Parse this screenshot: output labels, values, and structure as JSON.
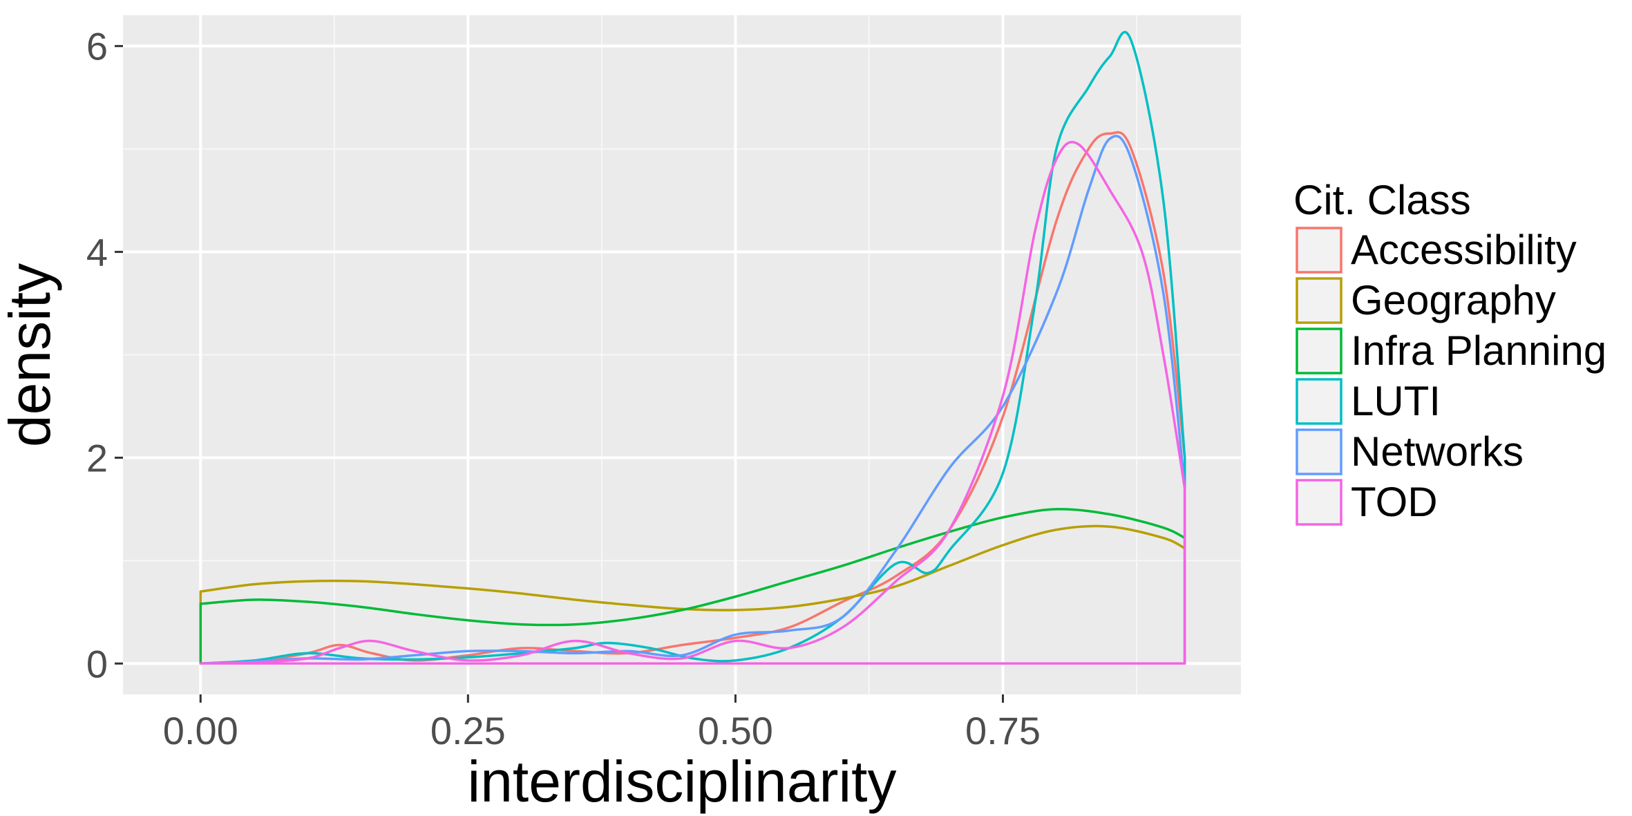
{
  "chart_data": {
    "type": "line",
    "title": "",
    "xlabel": "interdisciplinarity",
    "ylabel": "density",
    "xlim": [
      -0.0725,
      0.9725
    ],
    "ylim": [
      -0.3,
      6.3
    ],
    "x_ticks": [
      0.0,
      0.25,
      0.5,
      0.75
    ],
    "x_tick_labels": [
      "0.00",
      "0.25",
      "0.50",
      "0.75"
    ],
    "y_ticks": [
      0,
      2,
      4,
      6
    ],
    "y_tick_labels": [
      "0",
      "2",
      "4",
      "6"
    ],
    "grid": true,
    "legend_title": "Cit. Class",
    "legend_position": "right",
    "series": [
      {
        "name": "Accessibility",
        "color": "#F8766D",
        "x": [
          0.0,
          0.05,
          0.1,
          0.13,
          0.16,
          0.2,
          0.25,
          0.3,
          0.35,
          0.4,
          0.45,
          0.5,
          0.55,
          0.6,
          0.65,
          0.7,
          0.75,
          0.8,
          0.83,
          0.85,
          0.87,
          0.9,
          0.92
        ],
        "y": [
          0.0,
          0.02,
          0.1,
          0.18,
          0.1,
          0.03,
          0.08,
          0.15,
          0.12,
          0.1,
          0.18,
          0.25,
          0.35,
          0.6,
          0.85,
          1.3,
          2.4,
          4.3,
          5.0,
          5.15,
          5.0,
          3.8,
          2.0
        ]
      },
      {
        "name": "Geography",
        "color": "#B79F00",
        "x": [
          0.0,
          0.05,
          0.1,
          0.15,
          0.2,
          0.25,
          0.3,
          0.35,
          0.4,
          0.45,
          0.5,
          0.55,
          0.6,
          0.65,
          0.7,
          0.75,
          0.8,
          0.85,
          0.9,
          0.92
        ],
        "y": [
          0.7,
          0.77,
          0.8,
          0.8,
          0.77,
          0.73,
          0.68,
          0.62,
          0.57,
          0.53,
          0.52,
          0.55,
          0.63,
          0.75,
          0.95,
          1.15,
          1.3,
          1.33,
          1.22,
          1.12
        ]
      },
      {
        "name": "Infra Planning",
        "color": "#00BA38",
        "x": [
          0.0,
          0.05,
          0.1,
          0.15,
          0.2,
          0.25,
          0.3,
          0.35,
          0.4,
          0.45,
          0.5,
          0.55,
          0.6,
          0.65,
          0.7,
          0.75,
          0.8,
          0.85,
          0.9,
          0.92
        ],
        "y": [
          0.58,
          0.62,
          0.6,
          0.55,
          0.48,
          0.42,
          0.38,
          0.38,
          0.43,
          0.52,
          0.65,
          0.8,
          0.95,
          1.12,
          1.28,
          1.42,
          1.5,
          1.45,
          1.32,
          1.22
        ]
      },
      {
        "name": "LUTI",
        "color": "#00BFC4",
        "x": [
          0.0,
          0.05,
          0.1,
          0.15,
          0.2,
          0.25,
          0.3,
          0.35,
          0.38,
          0.42,
          0.46,
          0.5,
          0.55,
          0.6,
          0.65,
          0.68,
          0.7,
          0.75,
          0.78,
          0.8,
          0.83,
          0.85,
          0.87,
          0.9,
          0.92
        ],
        "y": [
          0.0,
          0.03,
          0.1,
          0.05,
          0.04,
          0.06,
          0.1,
          0.15,
          0.2,
          0.15,
          0.05,
          0.03,
          0.15,
          0.45,
          0.97,
          0.88,
          1.1,
          1.85,
          3.5,
          5.0,
          5.6,
          5.9,
          6.05,
          4.5,
          2.0
        ]
      },
      {
        "name": "Networks",
        "color": "#619CFF",
        "x": [
          0.0,
          0.05,
          0.1,
          0.15,
          0.2,
          0.25,
          0.3,
          0.35,
          0.4,
          0.45,
          0.5,
          0.55,
          0.6,
          0.65,
          0.7,
          0.75,
          0.8,
          0.83,
          0.85,
          0.87,
          0.9,
          0.92
        ],
        "y": [
          0.0,
          0.02,
          0.05,
          0.04,
          0.08,
          0.12,
          0.12,
          0.1,
          0.12,
          0.08,
          0.28,
          0.32,
          0.45,
          1.1,
          1.9,
          2.5,
          3.6,
          4.6,
          5.1,
          4.9,
          3.6,
          1.7
        ]
      },
      {
        "name": "TOD",
        "color": "#F564E3",
        "x": [
          0.0,
          0.05,
          0.1,
          0.13,
          0.16,
          0.2,
          0.25,
          0.3,
          0.35,
          0.4,
          0.45,
          0.5,
          0.55,
          0.6,
          0.65,
          0.7,
          0.75,
          0.78,
          0.8,
          0.82,
          0.85,
          0.88,
          0.9,
          0.92
        ],
        "y": [
          0.0,
          0.01,
          0.05,
          0.15,
          0.22,
          0.12,
          0.03,
          0.08,
          0.22,
          0.1,
          0.05,
          0.22,
          0.15,
          0.35,
          0.8,
          1.3,
          2.6,
          4.2,
          4.9,
          5.05,
          4.6,
          4.0,
          3.0,
          1.7
        ]
      }
    ]
  }
}
